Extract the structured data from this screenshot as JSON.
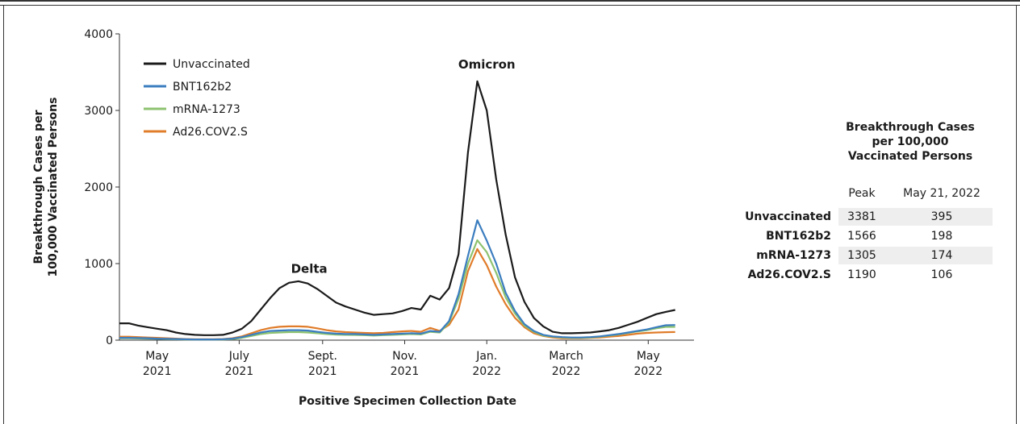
{
  "chart_data": {
    "type": "line",
    "ylabel_line1": "Breakthrough Cases per",
    "ylabel_line2": "100,000 Vaccinated Persons",
    "xlabel": "Positive Specimen Collection Date",
    "ylim": [
      0,
      4000
    ],
    "yticks": [
      0,
      1000,
      2000,
      3000,
      4000
    ],
    "xlim": [
      "2021-04-03",
      "2022-06-04"
    ],
    "xticks": [
      {
        "date": "2021-05-01",
        "line1": "May",
        "line2": "2021"
      },
      {
        "date": "2021-07-01",
        "line1": "July",
        "line2": "2021"
      },
      {
        "date": "2021-09-01",
        "line1": "Sept.",
        "line2": "2021"
      },
      {
        "date": "2021-11-01",
        "line1": "Nov.",
        "line2": "2021"
      },
      {
        "date": "2022-01-01",
        "line1": "Jan.",
        "line2": "2022"
      },
      {
        "date": "2022-03-01",
        "line1": "March",
        "line2": "2022"
      },
      {
        "date": "2022-05-01",
        "line1": "May",
        "line2": "2022"
      }
    ],
    "annotations": [
      {
        "text": "Delta",
        "date": "2021-08-22",
        "y": 880
      },
      {
        "text": "Omicron",
        "date": "2022-01-01",
        "y": 3550
      }
    ],
    "legend_position": "top-left",
    "dates": [
      "2021-04-03",
      "2021-04-10",
      "2021-04-17",
      "2021-04-24",
      "2021-05-01",
      "2021-05-08",
      "2021-05-15",
      "2021-05-22",
      "2021-05-29",
      "2021-06-05",
      "2021-06-12",
      "2021-06-19",
      "2021-06-26",
      "2021-07-03",
      "2021-07-10",
      "2021-07-17",
      "2021-07-24",
      "2021-07-31",
      "2021-08-07",
      "2021-08-14",
      "2021-08-21",
      "2021-08-28",
      "2021-09-04",
      "2021-09-11",
      "2021-09-18",
      "2021-09-25",
      "2021-10-02",
      "2021-10-09",
      "2021-10-16",
      "2021-10-23",
      "2021-10-30",
      "2021-11-06",
      "2021-11-13",
      "2021-11-20",
      "2021-11-27",
      "2021-12-04",
      "2021-12-11",
      "2021-12-18",
      "2021-12-25",
      "2022-01-01",
      "2022-01-08",
      "2022-01-15",
      "2022-01-22",
      "2022-01-29",
      "2022-02-05",
      "2022-02-12",
      "2022-02-19",
      "2022-02-26",
      "2022-03-05",
      "2022-03-12",
      "2022-03-19",
      "2022-03-26",
      "2022-04-02",
      "2022-04-09",
      "2022-04-16",
      "2022-04-23",
      "2022-04-30",
      "2022-05-07",
      "2022-05-14",
      "2022-05-21"
    ],
    "series": [
      {
        "name": "Unvaccinated",
        "color": "#1a1a1a",
        "values": [
          220,
          220,
          190,
          170,
          150,
          130,
          100,
          80,
          70,
          65,
          65,
          70,
          100,
          150,
          250,
          400,
          550,
          680,
          750,
          770,
          740,
          670,
          580,
          490,
          440,
          400,
          360,
          330,
          340,
          350,
          380,
          420,
          400,
          580,
          530,
          680,
          1120,
          2450,
          3381,
          3000,
          2100,
          1380,
          820,
          500,
          290,
          180,
          110,
          90,
          90,
          95,
          100,
          115,
          130,
          160,
          200,
          240,
          290,
          340,
          370,
          395
        ]
      },
      {
        "name": "BNT162b2",
        "color": "#3b7dbf",
        "values": [
          30,
          30,
          28,
          25,
          20,
          18,
          15,
          12,
          10,
          10,
          10,
          12,
          20,
          40,
          70,
          100,
          120,
          125,
          130,
          130,
          125,
          110,
          95,
          85,
          80,
          80,
          75,
          70,
          75,
          80,
          85,
          90,
          85,
          120,
          110,
          250,
          600,
          1100,
          1566,
          1300,
          1000,
          620,
          380,
          210,
          120,
          70,
          50,
          40,
          35,
          35,
          40,
          50,
          65,
          80,
          100,
          120,
          140,
          170,
          195,
          198
        ]
      },
      {
        "name": "mRNA-1273",
        "color": "#8dc26f",
        "values": [
          25,
          25,
          22,
          20,
          18,
          15,
          12,
          10,
          9,
          8,
          8,
          10,
          15,
          30,
          55,
          80,
          95,
          100,
          105,
          105,
          100,
          90,
          80,
          72,
          70,
          68,
          65,
          60,
          65,
          70,
          75,
          80,
          75,
          110,
          100,
          230,
          540,
          1000,
          1305,
          1150,
          880,
          560,
          350,
          190,
          110,
          60,
          45,
          35,
          30,
          30,
          35,
          45,
          60,
          75,
          95,
          115,
          130,
          155,
          174,
          174
        ]
      },
      {
        "name": "Ad26.COV2.S",
        "color": "#e07c2a",
        "values": [
          45,
          45,
          40,
          35,
          30,
          25,
          20,
          15,
          12,
          12,
          12,
          15,
          25,
          50,
          90,
          130,
          160,
          175,
          180,
          180,
          175,
          155,
          130,
          115,
          105,
          100,
          95,
          90,
          95,
          105,
          115,
          120,
          110,
          160,
          120,
          200,
          400,
          900,
          1190,
          980,
          700,
          470,
          290,
          170,
          90,
          55,
          35,
          25,
          25,
          25,
          30,
          35,
          45,
          55,
          70,
          85,
          95,
          100,
          104,
          106
        ]
      }
    ]
  },
  "table": {
    "title_line1": "Breakthrough Cases",
    "title_line2": "per 100,000",
    "title_line3": "Vaccinated Persons",
    "col_peak": "Peak",
    "col_date": "May 21, 2022",
    "rows": [
      {
        "name": "Unvaccinated",
        "peak": "3381",
        "may": "395",
        "shaded": true
      },
      {
        "name": "BNT162b2",
        "peak": "1566",
        "may": "198",
        "shaded": false
      },
      {
        "name": "mRNA-1273",
        "peak": "1305",
        "may": "174",
        "shaded": true
      },
      {
        "name": "Ad26.COV2.S",
        "peak": "1190",
        "may": "106",
        "shaded": false
      }
    ],
    "shade_color": "#eeeeee"
  }
}
